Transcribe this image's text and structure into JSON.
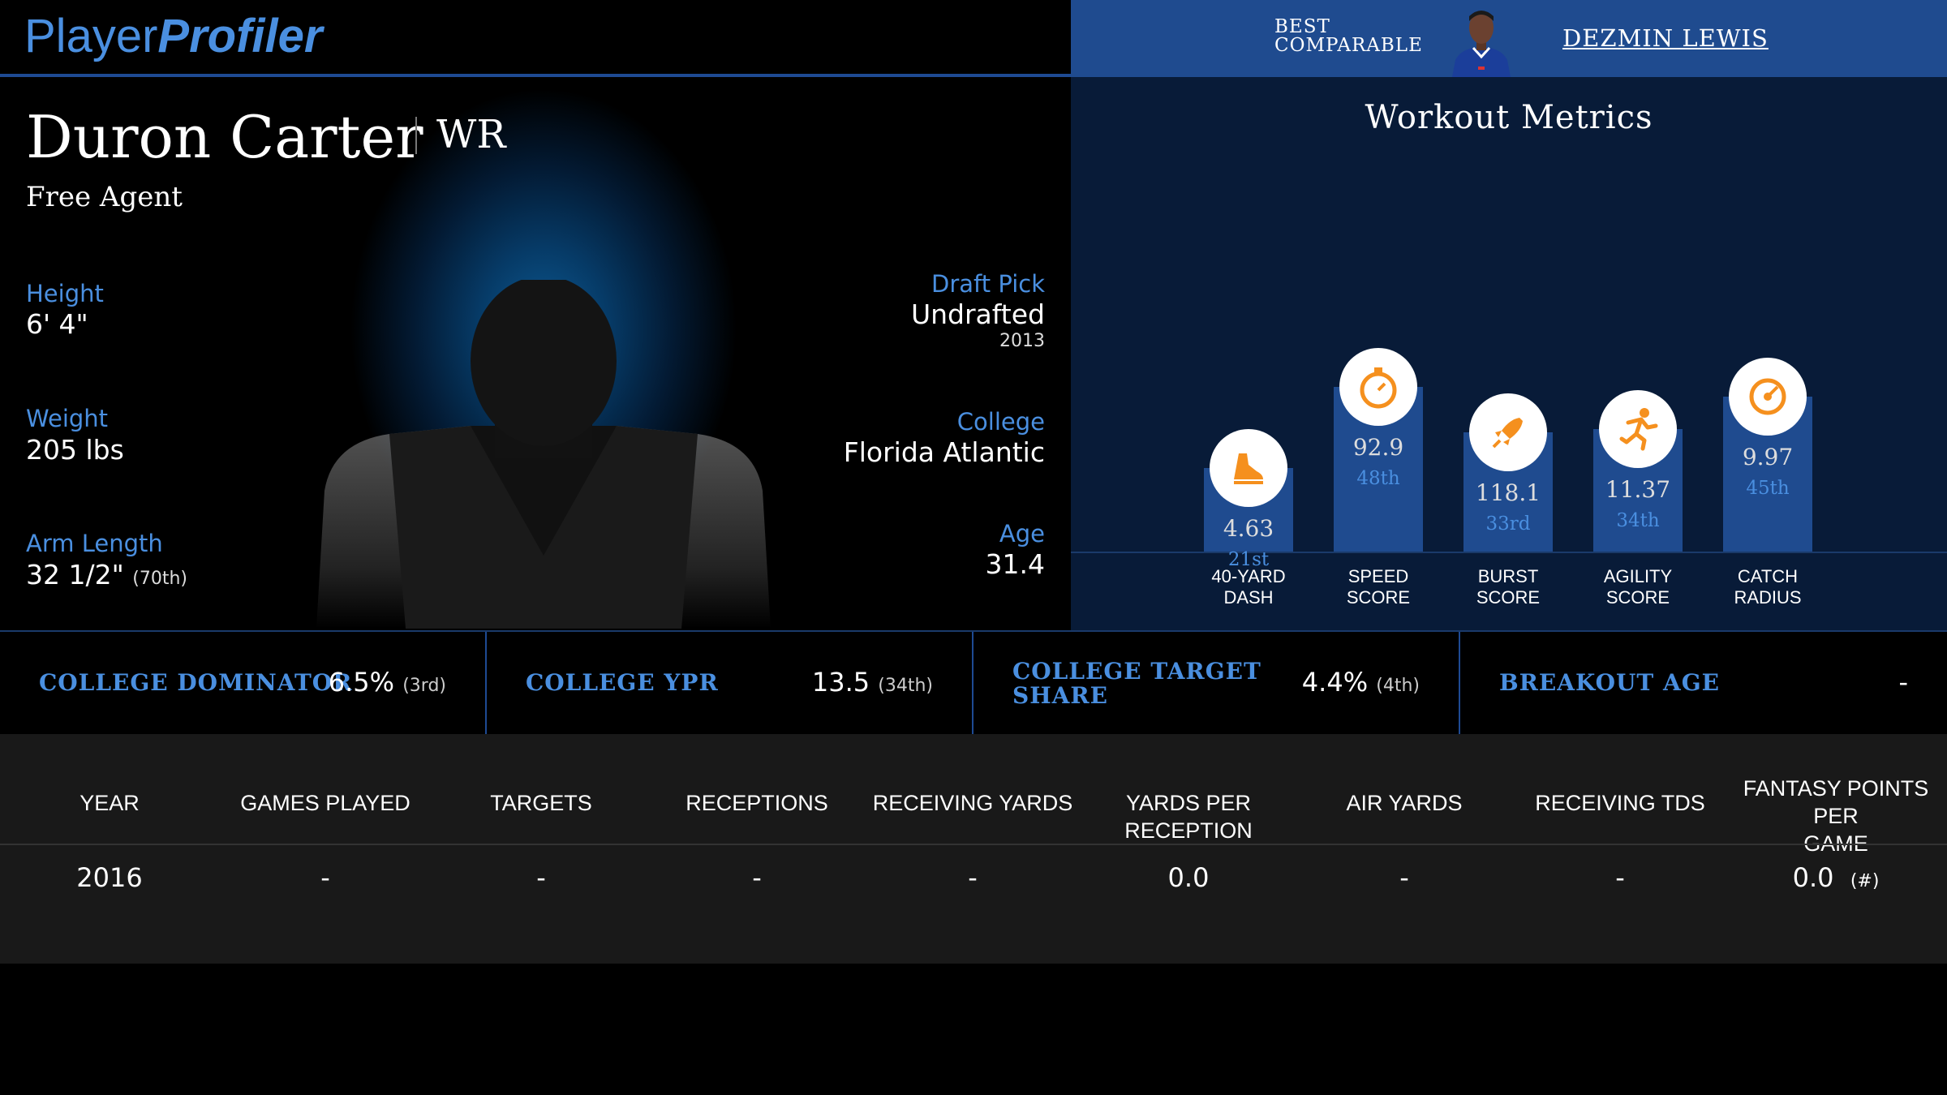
{
  "brand": {
    "part1": "Player",
    "part2": "Profiler"
  },
  "comparable": {
    "label_line1": "BEST",
    "label_line2": "COMPARABLE",
    "name": "DEZMIN LEWIS"
  },
  "player": {
    "name": "Duron Carter",
    "position": "WR",
    "status": "Free Agent",
    "height": {
      "label": "Height",
      "value": "6' 4\""
    },
    "weight": {
      "label": "Weight",
      "value": "205 lbs"
    },
    "arm_length": {
      "label": "Arm Length",
      "value": "32 1/2\"",
      "rank": "(70th)"
    },
    "draft_pick": {
      "label": "Draft Pick",
      "value": "Undrafted",
      "year": "2013"
    },
    "college": {
      "label": "College",
      "value": "Florida Atlantic"
    },
    "age": {
      "label": "Age",
      "value": "31.4"
    }
  },
  "workout": {
    "title": "Workout Metrics",
    "metrics": [
      {
        "value": "4.63",
        "pct": "21st",
        "line1": "40-YARD",
        "line2": "DASH",
        "icon": "shoe-icon",
        "percentile": 21
      },
      {
        "value": "92.9",
        "pct": "48th",
        "line1": "SPEED",
        "line2": "SCORE",
        "icon": "stopwatch-icon",
        "percentile": 48
      },
      {
        "value": "118.1",
        "pct": "33rd",
        "line1": "BURST",
        "line2": "SCORE",
        "icon": "rocket-icon",
        "percentile": 33
      },
      {
        "value": "11.37",
        "pct": "34th",
        "line1": "AGILITY",
        "line2": "SCORE",
        "icon": "runner-icon",
        "percentile": 34
      },
      {
        "value": "9.97",
        "pct": "45th",
        "line1": "CATCH",
        "line2": "RADIUS",
        "icon": "target-icon",
        "percentile": 45
      }
    ]
  },
  "college_stats": [
    {
      "label": "COLLEGE DOMINATOR",
      "value": "6.5%",
      "rank": "(3rd)"
    },
    {
      "label": "COLLEGE YPR",
      "value": "13.5",
      "rank": "(34th)"
    },
    {
      "label_line1": "COLLEGE TARGET",
      "label_line2": "SHARE",
      "value": "4.4%",
      "rank": "(4th)"
    },
    {
      "label": "BREAKOUT AGE",
      "value": "-",
      "rank": ""
    }
  ],
  "season_table": {
    "headers": [
      "YEAR",
      "GAMES PLAYED",
      "TARGETS",
      "RECEPTIONS",
      "RECEIVING YARDS",
      "YARDS PER RECEPTION",
      "AIR YARDS",
      "RECEIVING TDS",
      "FANTASY POINTS PER",
      "GAME"
    ],
    "row": [
      "2016",
      "-",
      "-",
      "-",
      "-",
      "0.0",
      "-",
      "-",
      "0.0",
      "(#)"
    ]
  },
  "colors": {
    "accent": "#4a8fe0",
    "bar": "#1f4b8f",
    "icon_orange": "#f5901e"
  }
}
